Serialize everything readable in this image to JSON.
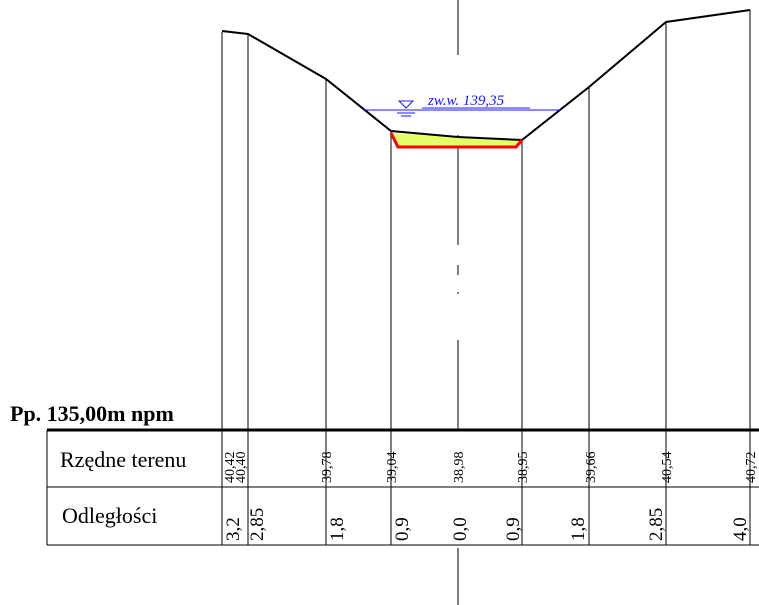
{
  "datum": {
    "label": "Pp. 135,00m npm"
  },
  "water_level": {
    "label": "zw.w. 139,35"
  },
  "table": {
    "elevation_row_label": "Rzędne terenu",
    "distance_row_label": "Odległości"
  },
  "stations": [
    {
      "elevation": "40,42",
      "distance": "3,2"
    },
    {
      "elevation": "40,40",
      "distance": "2,85"
    },
    {
      "elevation": "39,78",
      "distance": "1,8"
    },
    {
      "elevation": "39,04",
      "distance": "0,9"
    },
    {
      "elevation": "38,98",
      "distance": "0,0"
    },
    {
      "elevation": "38,95",
      "distance": "0,9"
    },
    {
      "elevation": "39,66",
      "distance": "1,8"
    },
    {
      "elevation": "40,54",
      "distance": "2,85"
    },
    {
      "elevation": "40,72",
      "distance": "4,0"
    }
  ],
  "colors": {
    "terrain": "#000000",
    "water_line": "#1a1aff",
    "channel_outline": "#ff0000",
    "channel_fill": "#e6ff66"
  }
}
